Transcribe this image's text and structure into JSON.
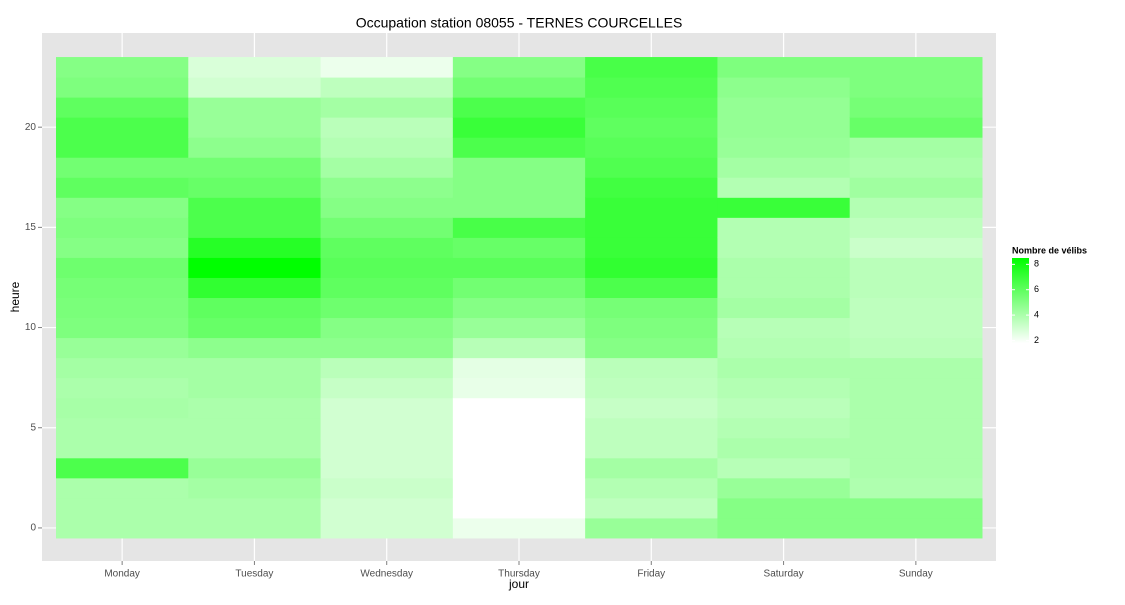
{
  "chart_data": {
    "type": "heatmap",
    "title": "Occupation station 08055 - TERNES COURCELLES",
    "x_label": "jour",
    "y_label": "heure",
    "categories": [
      "Monday",
      "Tuesday",
      "Wednesday",
      "Thursday",
      "Friday",
      "Saturday",
      "Sunday"
    ],
    "y": [
      0,
      1,
      2,
      3,
      4,
      5,
      6,
      7,
      8,
      9,
      10,
      11,
      12,
      13,
      14,
      15,
      16,
      17,
      18,
      19,
      20,
      21,
      22,
      23
    ],
    "values": [
      [
        4.0,
        4.0,
        4.0,
        6.5,
        4.0,
        4.0,
        4.1,
        4.0,
        4.2,
        4.5,
        5.2,
        5.3,
        5.4,
        5.6,
        5.0,
        5.2,
        5.0,
        6.0,
        5.5,
        6.5,
        6.5,
        6.0,
        5.2,
        5.0
      ],
      [
        4.0,
        4.0,
        4.2,
        4.5,
        4.0,
        4.0,
        4.0,
        4.2,
        4.2,
        4.8,
        5.8,
        6.0,
        7.2,
        8.5,
        7.5,
        6.5,
        6.5,
        5.8,
        5.5,
        4.8,
        4.5,
        4.5,
        3.0,
        2.8
      ],
      [
        3.0,
        3.0,
        3.2,
        3.0,
        3.0,
        3.0,
        3.0,
        3.3,
        3.6,
        4.8,
        5.0,
        5.6,
        6.0,
        6.2,
        6.0,
        5.5,
        5.0,
        4.8,
        4.2,
        3.8,
        3.6,
        4.2,
        3.5,
        2.3
      ],
      [
        2.3,
        1.8,
        1.8,
        1.8,
        1.8,
        1.8,
        1.8,
        2.4,
        2.5,
        3.7,
        4.5,
        5.0,
        5.5,
        6.2,
        5.8,
        6.6,
        5.0,
        5.0,
        5.0,
        6.5,
        7.0,
        6.5,
        5.5,
        5.0
      ],
      [
        4.5,
        3.5,
        3.8,
        4.2,
        3.5,
        3.5,
        3.3,
        3.5,
        3.6,
        5.0,
        5.2,
        5.4,
        6.5,
        7.2,
        7.0,
        7.0,
        7.0,
        6.8,
        6.4,
        6.2,
        6.0,
        6.2,
        6.4,
        6.6
      ],
      [
        5.0,
        5.0,
        4.5,
        3.7,
        4.0,
        3.8,
        3.6,
        3.8,
        4.0,
        3.8,
        3.7,
        4.2,
        4.0,
        4.0,
        3.8,
        3.8,
        7.0,
        3.8,
        4.2,
        4.5,
        4.6,
        4.6,
        4.8,
        5.2
      ],
      [
        5.0,
        5.0,
        3.9,
        4.0,
        4.0,
        4.0,
        4.0,
        4.0,
        4.0,
        3.6,
        3.5,
        3.5,
        3.6,
        3.6,
        3.2,
        3.5,
        3.8,
        4.3,
        4.0,
        4.2,
        5.8,
        5.4,
        5.2,
        5.2
      ]
    ],
    "ylim": [
      -1.65,
      24.7
    ],
    "yticks": [
      0,
      5,
      10,
      15,
      20
    ],
    "color_low": "#ffffff",
    "color_high": "#00ff00",
    "color_limits": [
      1.8,
      8.5
    ],
    "legend_title": "Nombre de vélibs",
    "legend_ticks": [
      2,
      4,
      6,
      8
    ],
    "grid": true
  }
}
